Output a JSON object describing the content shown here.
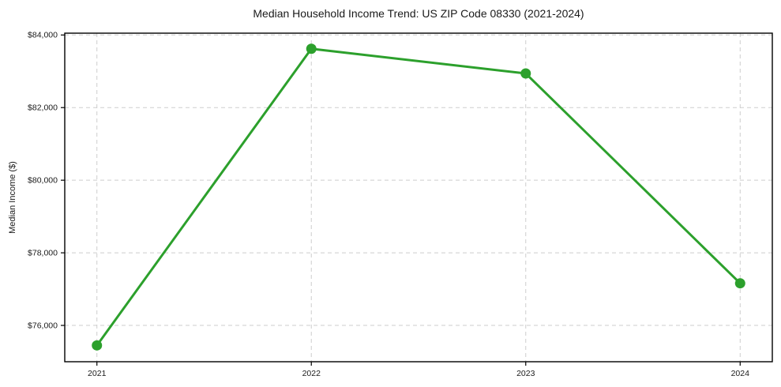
{
  "chart_data": {
    "type": "line",
    "title": "Median Household Income Trend: US ZIP Code 08330 (2021-2024)",
    "categories": [
      "2021",
      "2022",
      "2023",
      "2024"
    ],
    "values": [
      75450,
      83620,
      82940,
      77160
    ],
    "xlabel": "",
    "ylabel": "Median Income ($)",
    "ylim": [
      75000,
      84050
    ],
    "yticks": [
      76000,
      78000,
      80000,
      82000,
      84000
    ],
    "ytick_labels": [
      "$76,000",
      "$78,000",
      "$80,000",
      "$82,000",
      "$84,000"
    ],
    "grid": true,
    "grid_style": "dashed",
    "legend": "none",
    "line_color": "#2ca02c",
    "marker_color": "#2ca02c",
    "marker_shape": "circle",
    "grid_color": "#cdcdcd",
    "spine_color": "#000000",
    "text_color": "#1a1a1a",
    "background_color": "#ffffff"
  }
}
